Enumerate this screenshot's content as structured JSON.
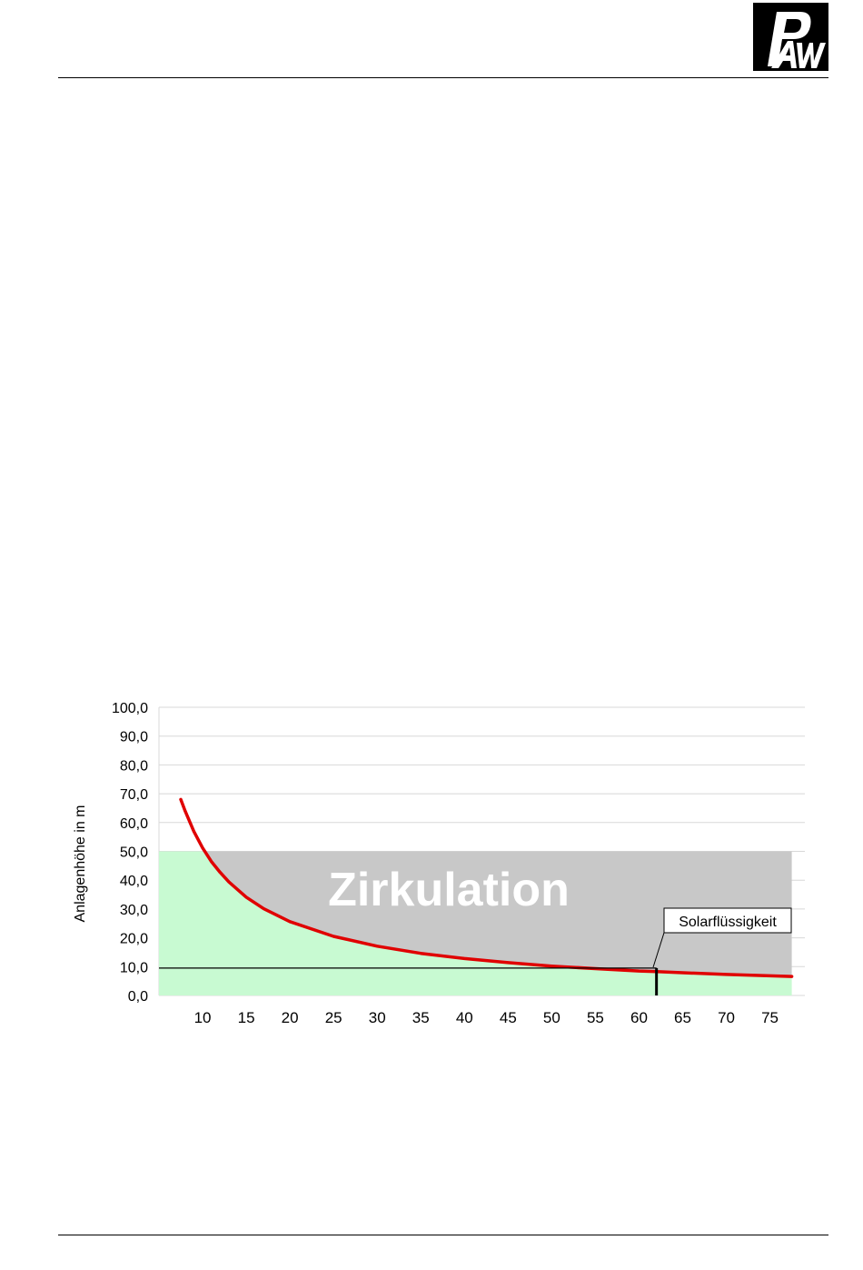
{
  "brand": {
    "logo_text": "PAW",
    "logo_bg": "#000000",
    "logo_fg": "#ffffff"
  },
  "chart_data": {
    "type": "line",
    "ylabel": "Anlagenhöhe in m",
    "xlabel": "",
    "title": "",
    "xlim": [
      5,
      79
    ],
    "ylim": [
      0,
      100
    ],
    "x_ticks": [
      10,
      15,
      20,
      25,
      30,
      35,
      40,
      45,
      50,
      55,
      60,
      65,
      70,
      75
    ],
    "y_ticks": [
      "0,0",
      "10,0",
      "20,0",
      "30,0",
      "40,0",
      "50,0",
      "60,0",
      "70,0",
      "80,0",
      "90,0",
      "100,0"
    ],
    "y_tick_values": [
      0,
      10,
      20,
      30,
      40,
      50,
      60,
      70,
      80,
      90,
      100
    ],
    "grid": true,
    "series": [
      {
        "color": "#e00000",
        "x": [
          7.5,
          8,
          9,
          10,
          11,
          12,
          13,
          15,
          17,
          20,
          25,
          30,
          35,
          40,
          45,
          50,
          55,
          60,
          62,
          65,
          70,
          75,
          77.5
        ],
        "y": [
          68.0,
          64.0,
          56.9,
          51.2,
          46.5,
          42.7,
          39.4,
          34.1,
          30.1,
          25.6,
          20.5,
          17.1,
          14.6,
          12.8,
          11.4,
          10.2,
          9.3,
          8.5,
          8.3,
          7.9,
          7.3,
          6.8,
          6.6
        ]
      }
    ],
    "regions": {
      "green_fill": "#c8fad2",
      "gray_fill": "#c8c8c8",
      "upper_limit": 50.0,
      "upper_limit_x_end": 77.5,
      "zirkulation_label": "Zirkulation"
    },
    "reference_line": {
      "y": 9.5,
      "marker_x": 62,
      "annotation": "Solarflüssigkeit"
    }
  }
}
